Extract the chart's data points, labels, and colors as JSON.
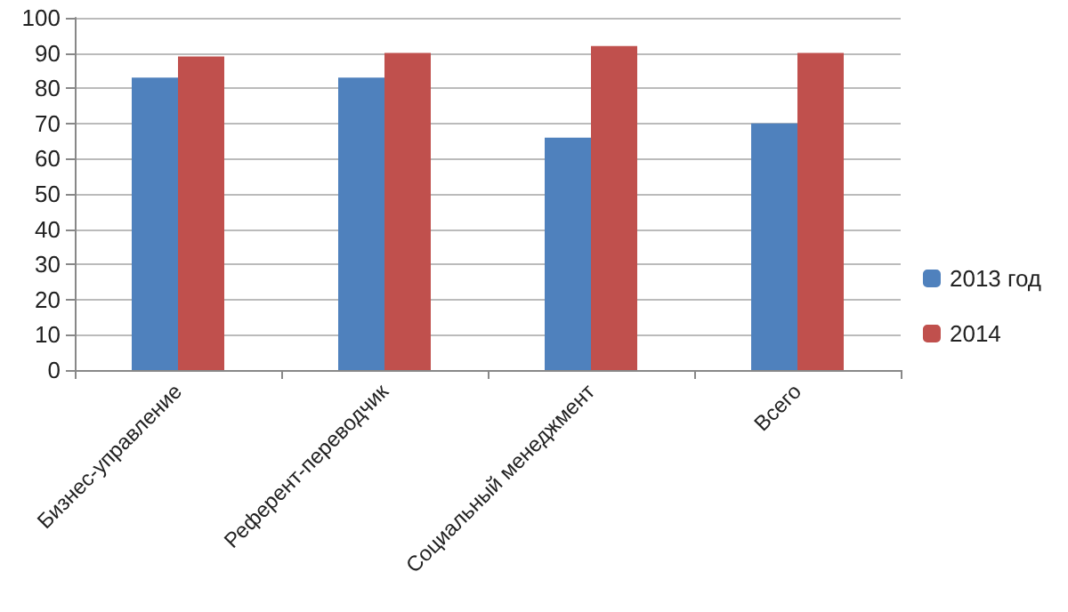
{
  "chart_data": {
    "type": "bar",
    "categories": [
      "Бизнес-управление",
      "Референт-переводчик",
      "Социальный менеджмент",
      "Всего"
    ],
    "series": [
      {
        "name": "2013 год",
        "color": "#4f81bd",
        "values": [
          83,
          83,
          66,
          70
        ]
      },
      {
        "name": "2014",
        "color": "#c0504d",
        "values": [
          89,
          90,
          92,
          90
        ]
      }
    ],
    "ylim": [
      0,
      100
    ],
    "yticks": [
      0,
      10,
      20,
      30,
      40,
      50,
      60,
      70,
      80,
      90,
      100
    ],
    "grid": "y",
    "legend": "right"
  }
}
